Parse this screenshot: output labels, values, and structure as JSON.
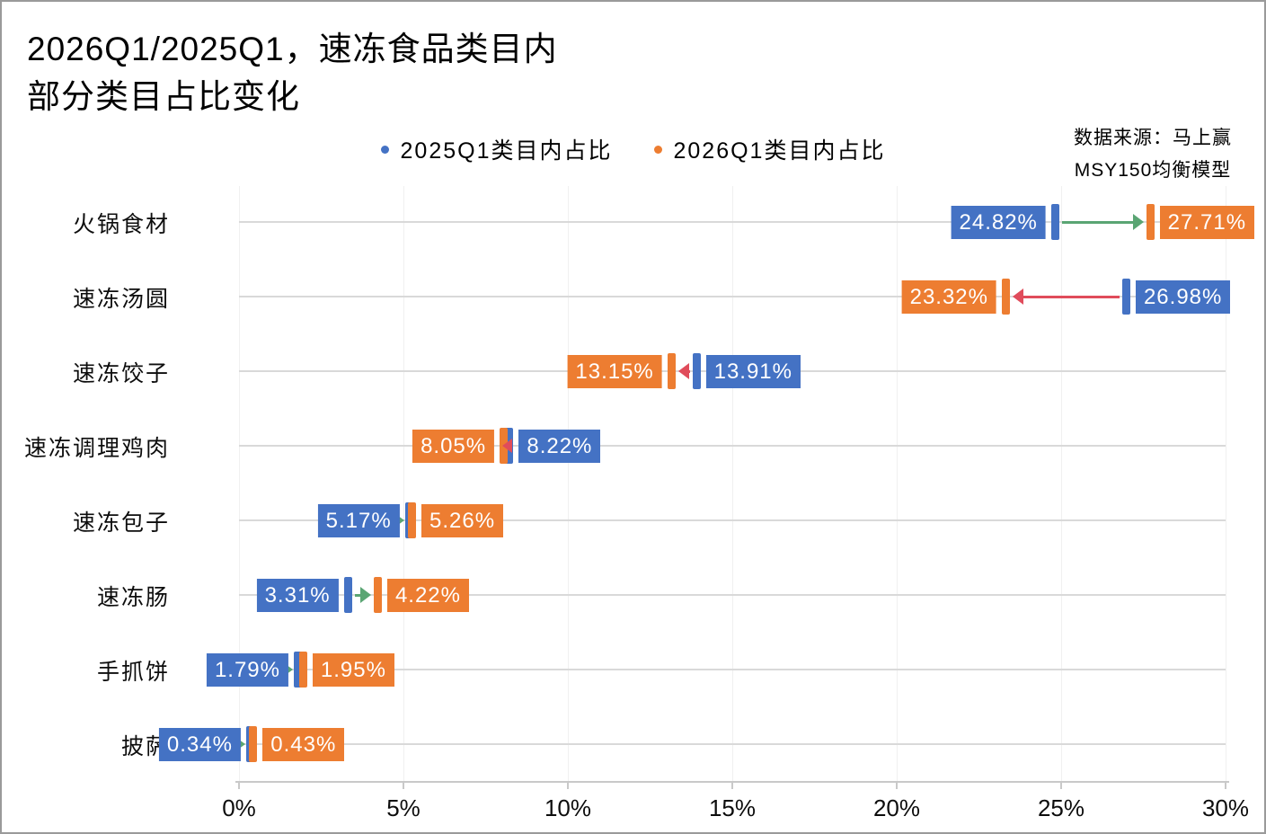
{
  "page": {
    "title_line1": "2026Q1/2025Q1，速冻食品类目内",
    "title_line2": "部分类目占比变化",
    "source_line1": "数据来源：马上赢",
    "source_line2": "MSY150均衡模型"
  },
  "chart_data": {
    "type": "dumbbell-arrow",
    "title": "2026Q1/2025Q1，速冻食品类目内部分类目占比变化",
    "source": "数据来源：马上赢 MSY150均衡模型",
    "categories": [
      "火锅食材",
      "速冻汤圆",
      "速冻饺子",
      "速冻调理鸡肉",
      "速冻包子",
      "速冻肠",
      "手抓饼",
      "披萨"
    ],
    "series": [
      {
        "name": "2025Q1类目内占比",
        "color": "#4472C4",
        "values": [
          24.82,
          26.98,
          13.91,
          8.22,
          5.17,
          3.31,
          1.79,
          0.34
        ],
        "labels": [
          "24.82%",
          "26.98%",
          "13.91%",
          "8.22%",
          "5.17%",
          "3.31%",
          "1.79%",
          "0.34%"
        ]
      },
      {
        "name": "2026Q1类目内占比",
        "color": "#ED7D31",
        "values": [
          27.71,
          23.32,
          13.15,
          8.05,
          5.26,
          4.22,
          1.95,
          0.43
        ],
        "labels": [
          "27.71%",
          "23.32%",
          "13.15%",
          "8.05%",
          "5.26%",
          "4.22%",
          "1.95%",
          "0.43%"
        ]
      }
    ],
    "x_axis": {
      "min": 0,
      "max": 30,
      "step": 5,
      "tick_labels": [
        "0%",
        "5%",
        "10%",
        "15%",
        "20%",
        "25%",
        "30%"
      ],
      "grid": true
    },
    "legend_position": "top-center",
    "arrow_increase_color": "#5AA573",
    "arrow_decrease_color": "#E04C5B"
  }
}
